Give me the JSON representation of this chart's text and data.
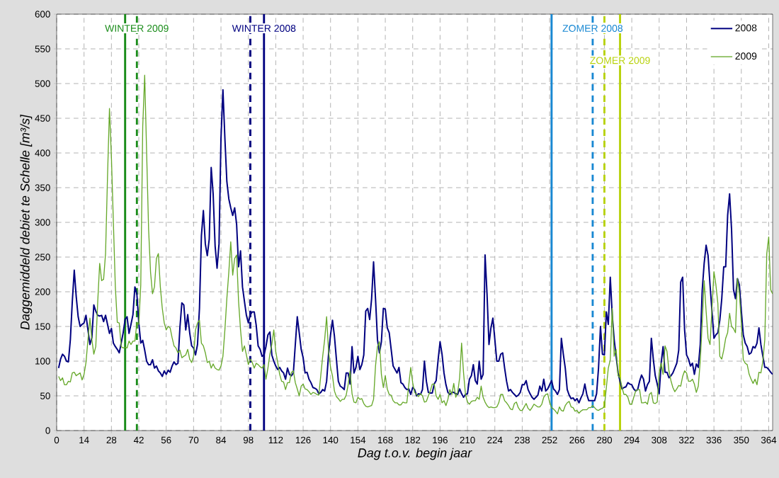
{
  "chart_data": {
    "type": "line",
    "xlabel": "Dag t.o.v. begin jaar",
    "ylabel": "Daggemiddeld debiet te Schelle [m³/s]",
    "xlim": [
      0,
      366
    ],
    "ylim": [
      0,
      600
    ],
    "xticks": [
      0,
      14,
      28,
      42,
      56,
      70,
      84,
      98,
      112,
      126,
      140,
      154,
      168,
      182,
      196,
      210,
      224,
      238,
      252,
      266,
      280,
      294,
      308,
      322,
      336,
      350,
      364
    ],
    "yticks": [
      0,
      50,
      100,
      150,
      200,
      250,
      300,
      350,
      400,
      450,
      500,
      550,
      600
    ],
    "grid": true,
    "legend": "top right",
    "line_style": "solid",
    "x": [
      1,
      2,
      3,
      4,
      5,
      6,
      7,
      8,
      9,
      10,
      11,
      12,
      13,
      14,
      15,
      16,
      17,
      18,
      19,
      20,
      21,
      22,
      23,
      24,
      25,
      26,
      27,
      28,
      29,
      30,
      31,
      32,
      33,
      34,
      35,
      36,
      37,
      38,
      39,
      40,
      41,
      42,
      43,
      44,
      45,
      46,
      47,
      48,
      49,
      50,
      51,
      52,
      53,
      54,
      55,
      56,
      57,
      58,
      59,
      60,
      61,
      62,
      63,
      64,
      65,
      66,
      67,
      68,
      69,
      70,
      71,
      72,
      73,
      74,
      75,
      76,
      77,
      78,
      79,
      80,
      81,
      82,
      83,
      84,
      85,
      86,
      87,
      88,
      89,
      90,
      91,
      92,
      93,
      94,
      95,
      96,
      97,
      98,
      99,
      100,
      101,
      102,
      103,
      104,
      105,
      106,
      107,
      108,
      109,
      110,
      111,
      112,
      113,
      114,
      115,
      116,
      117,
      118,
      119,
      120,
      121,
      122,
      123,
      124,
      125,
      126,
      127,
      128,
      129,
      130,
      131,
      132,
      133,
      134,
      135,
      136,
      137,
      138,
      139,
      140,
      141,
      142,
      143,
      144,
      145,
      146,
      147,
      148,
      149,
      150,
      151,
      152,
      153,
      154,
      155,
      156,
      157,
      158,
      159,
      160,
      161,
      162,
      163,
      164,
      165,
      166,
      167,
      168,
      169,
      170,
      171,
      172,
      173,
      174,
      175,
      176,
      177,
      178,
      179,
      180,
      181,
      182,
      183,
      184,
      185,
      186,
      187,
      188,
      189,
      190,
      191,
      192,
      193,
      194,
      195,
      196,
      197,
      198,
      199,
      200,
      201,
      202,
      203,
      204,
      205,
      206,
      207,
      208,
      209,
      210,
      211,
      212,
      213,
      214,
      215,
      216,
      217,
      218,
      219,
      220,
      221,
      222,
      223,
      224,
      225,
      226,
      227,
      228,
      229,
      230,
      231,
      232,
      233,
      234,
      235,
      236,
      237,
      238,
      239,
      240,
      241,
      242,
      243,
      244,
      245,
      246,
      247,
      248,
      249,
      250,
      251,
      252,
      253,
      254,
      255,
      256,
      257,
      258,
      259,
      260,
      261,
      262,
      263,
      264,
      265,
      266,
      267,
      268,
      269,
      270,
      271,
      272,
      273,
      274,
      275,
      276,
      277,
      278,
      279,
      280,
      281,
      282,
      283,
      284,
      285,
      286,
      287,
      288,
      289,
      290,
      291,
      292,
      293,
      294,
      295,
      296,
      297,
      298,
      299,
      300,
      301,
      302,
      303,
      304,
      305,
      306,
      307,
      308,
      309,
      310,
      311,
      312,
      313,
      314,
      315,
      316,
      317,
      318,
      319,
      320,
      321,
      322,
      323,
      324,
      325,
      326,
      327,
      328,
      329,
      330,
      331,
      332,
      333,
      334,
      335,
      336,
      337,
      338,
      339,
      340,
      341,
      342,
      343,
      344,
      345,
      346,
      347,
      348,
      349,
      350,
      351,
      352,
      353,
      354,
      355,
      356,
      357,
      358,
      359,
      360,
      361,
      362,
      363,
      364,
      365,
      366
    ],
    "series": [
      {
        "name": "2008",
        "color": "#000080",
        "values": [
          90,
          103,
          110,
          107,
          100,
          99,
          131,
          186,
          231,
          193,
          164,
          150,
          153,
          155,
          166,
          145,
          124,
          134,
          181,
          172,
          166,
          165,
          166,
          157,
          166,
          153,
          140,
          147,
          126,
          121,
          117,
          112,
          126,
          141,
          160,
          164,
          140,
          153,
          167,
          207,
          197,
          155,
          126,
          130,
          116,
          100,
          95,
          95,
          102,
          90,
          93,
          86,
          83,
          78,
          86,
          81,
          87,
          84,
          93,
          99,
          95,
          97,
          148,
          184,
          181,
          145,
          167,
          141,
          122,
          119,
          109,
          124,
          176,
          281,
          317,
          269,
          252,
          276,
          379,
          341,
          266,
          234,
          269,
          421,
          491,
          421,
          359,
          334,
          321,
          310,
          321,
          297,
          236,
          259,
          207,
          186,
          166,
          155,
          167,
          171,
          171,
          152,
          122,
          117,
          107,
          109,
          121,
          138,
          142,
          109,
          100,
          93,
          88,
          91,
          86,
          83,
          74,
          90,
          81,
          79,
          83,
          124,
          164,
          141,
          117,
          105,
          83,
          84,
          74,
          69,
          62,
          61,
          59,
          53,
          55,
          59,
          57,
          71,
          110,
          138,
          159,
          136,
          103,
          71,
          64,
          62,
          59,
          83,
          83,
          67,
          121,
          83,
          91,
          107,
          88,
          95,
          109,
          172,
          176,
          160,
          190,
          243,
          190,
          131,
          112,
          128,
          176,
          175,
          148,
          141,
          117,
          93,
          88,
          83,
          91,
          69,
          67,
          62,
          59,
          60,
          52,
          62,
          59,
          50,
          53,
          52,
          59,
          100,
          71,
          55,
          54,
          54,
          67,
          72,
          102,
          128,
          110,
          83,
          66,
          55,
          52,
          55,
          55,
          53,
          52,
          60,
          53,
          48,
          52,
          53,
          74,
          79,
          95,
          72,
          67,
          100,
          74,
          81,
          253,
          197,
          124,
          148,
          162,
          131,
          100,
          100,
          110,
          112,
          90,
          71,
          57,
          59,
          55,
          52,
          49,
          51,
          55,
          66,
          66,
          72,
          59,
          53,
          48,
          45,
          48,
          51,
          64,
          57,
          74,
          57,
          60,
          66,
          72,
          60,
          57,
          52,
          59,
          133,
          110,
          90,
          59,
          51,
          46,
          47,
          43,
          46,
          40,
          47,
          53,
          67,
          52,
          43,
          43,
          43,
          43,
          53,
          90,
          150,
          110,
          109,
          171,
          153,
          221,
          167,
          131,
          107,
          83,
          71,
          60,
          62,
          63,
          69,
          67,
          66,
          60,
          57,
          59,
          71,
          80,
          74,
          57,
          66,
          71,
          133,
          103,
          79,
          67,
          53,
          97,
          121,
          84,
          84,
          76,
          79,
          83,
          90,
          97,
          116,
          214,
          221,
          145,
          109,
          103,
          93,
          97,
          81,
          96,
          91,
          124,
          202,
          241,
          267,
          252,
          210,
          172,
          133,
          138,
          141,
          159,
          190,
          236,
          236,
          310,
          341,
          290,
          203,
          190,
          219,
          210,
          172,
          138,
          126,
          121,
          110,
          112,
          121,
          119,
          126,
          148,
          124,
          107,
          91,
          91,
          88,
          84,
          81
        ]
      },
      {
        "name": "2009",
        "color": "#66a82a",
        "values": [
          78,
          72,
          76,
          66,
          66,
          71,
          70,
          83,
          84,
          79,
          81,
          83,
          73,
          81,
          98,
          131,
          162,
          131,
          110,
          121,
          186,
          241,
          216,
          218,
          255,
          366,
          464,
          393,
          300,
          207,
          156,
          155,
          121,
          119,
          120,
          119,
          129,
          124,
          129,
          129,
          155,
          153,
          210,
          438,
          512,
          400,
          290,
          228,
          197,
          207,
          248,
          255,
          207,
          176,
          155,
          145,
          150,
          148,
          134,
          122,
          119,
          112,
          116,
          105,
          107,
          109,
          117,
          103,
          98,
          107,
          145,
          155,
          159,
          126,
          122,
          112,
          98,
          100,
          90,
          96,
          90,
          88,
          87,
          93,
          107,
          145,
          190,
          228,
          272,
          224,
          248,
          253,
          186,
          145,
          114,
          122,
          109,
          95,
          103,
          98,
          90,
          97,
          95,
          92,
          90,
          95,
          74,
          90,
          110,
          124,
          145,
          114,
          98,
          81,
          71,
          70,
          59,
          69,
          69,
          84,
          86,
          69,
          60,
          50,
          64,
          67,
          60,
          59,
          56,
          52,
          55,
          54,
          52,
          51,
          79,
          107,
          131,
          164,
          114,
          91,
          79,
          57,
          49,
          46,
          42,
          45,
          45,
          51,
          66,
          86,
          53,
          41,
          40,
          48,
          45,
          46,
          39,
          35,
          34,
          35,
          36,
          45,
          93,
          121,
          128,
          81,
          62,
          79,
          60,
          52,
          51,
          43,
          40,
          40,
          37,
          37,
          41,
          40,
          40,
          66,
          91,
          69,
          55,
          52,
          49,
          53,
          50,
          41,
          42,
          50,
          57,
          67,
          67,
          50,
          45,
          52,
          40,
          43,
          36,
          45,
          59,
          52,
          68,
          48,
          55,
          76,
          126,
          83,
          52,
          41,
          38,
          42,
          43,
          43,
          48,
          45,
          64,
          48,
          41,
          36,
          33,
          34,
          33,
          33,
          34,
          40,
          52,
          52,
          43,
          40,
          36,
          31,
          30,
          39,
          41,
          33,
          29,
          29,
          34,
          39,
          32,
          29,
          33,
          38,
          36,
          34,
          34,
          38,
          48,
          52,
          53,
          41,
          33,
          31,
          28,
          24,
          34,
          29,
          28,
          36,
          40,
          42,
          34,
          33,
          28,
          29,
          25,
          28,
          30,
          30,
          30,
          33,
          33,
          36,
          33,
          30,
          29,
          31,
          32,
          35,
          62,
          90,
          102,
          176,
          107,
          117,
          79,
          76,
          62,
          52,
          52,
          48,
          38,
          38,
          48,
          57,
          59,
          59,
          40,
          40,
          41,
          38,
          52,
          55,
          40,
          39,
          41,
          83,
          97,
          81,
          122,
          114,
          86,
          72,
          62,
          56,
          60,
          65,
          64,
          78,
          86,
          83,
          71,
          71,
          74,
          67,
          55,
          64,
          100,
          155,
          216,
          172,
          133,
          124,
          176,
          229,
          210,
          183,
          107,
          103,
          116,
          133,
          141,
          169,
          150,
          147,
          141,
          219,
          198,
          155,
          102,
          97,
          95,
          81,
          74,
          68,
          74,
          66,
          84,
          83,
          100,
          131,
          255,
          279,
          203,
          197
        ]
      }
    ],
    "ref_lines": [
      {
        "axis": "x",
        "value": 35,
        "color": "#1a8c1a",
        "line_style": "solid"
      },
      {
        "axis": "x",
        "value": 41,
        "color": "#1a8c1a",
        "line_style": "dashed",
        "label": "WINTER 2009"
      },
      {
        "axis": "x",
        "value": 99,
        "color": "#000080",
        "line_style": "dashed"
      },
      {
        "axis": "x",
        "value": 106,
        "color": "#000080",
        "line_style": "solid",
        "label": "WINTER 2008"
      },
      {
        "axis": "x",
        "value": 253,
        "color": "#1787d2",
        "line_style": "solid"
      },
      {
        "axis": "x",
        "value": 274,
        "color": "#1787d2",
        "line_style": "dashed",
        "label": "ZOMER 2008"
      },
      {
        "axis": "x",
        "value": 280,
        "color": "#b8d20c",
        "line_style": "dashed"
      },
      {
        "axis": "x",
        "value": 288,
        "color": "#b8d20c",
        "line_style": "solid",
        "label": "ZOMER 2009"
      }
    ]
  }
}
